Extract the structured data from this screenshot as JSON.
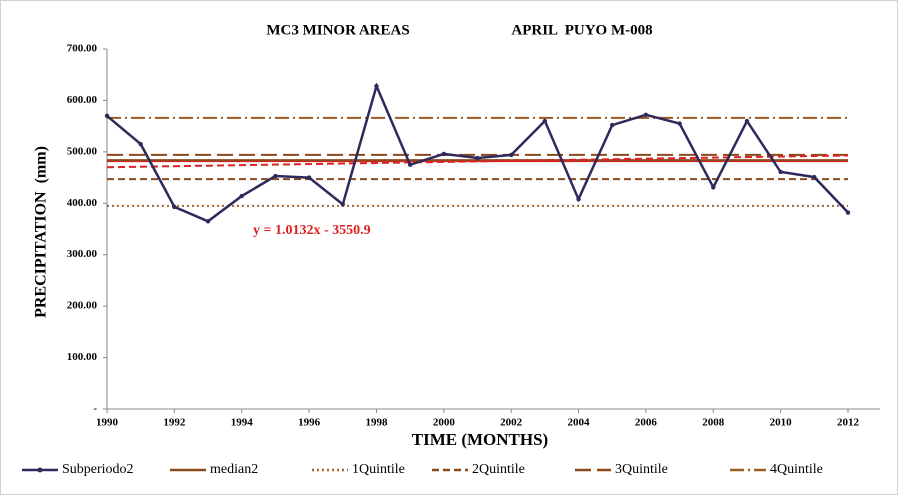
{
  "chart_data": {
    "type": "line",
    "title": "MC3 MINOR AREAS",
    "subtitle": "APRIL  PUYO M-008",
    "x_label": "TIME (MONTHS)",
    "y_label": "PRECIPITATION  (mm)",
    "x": [
      1990,
      1991,
      1992,
      1993,
      1994,
      1995,
      1996,
      1997,
      1998,
      1999,
      2000,
      2001,
      2002,
      2003,
      2004,
      2005,
      2006,
      2007,
      2008,
      2009,
      2010,
      2011,
      2012
    ],
    "xlim": [
      1990,
      2012
    ],
    "xticks": [
      1990,
      1992,
      1994,
      1996,
      1998,
      2000,
      2002,
      2004,
      2006,
      2008,
      2010,
      2012
    ],
    "ylim": [
      0,
      700
    ],
    "yticks": [
      {
        "value": 0,
        "label": "-"
      },
      {
        "value": 100,
        "label": "100.00"
      },
      {
        "value": 200,
        "label": "200.00"
      },
      {
        "value": 300,
        "label": "300.00"
      },
      {
        "value": 400,
        "label": "400.00"
      },
      {
        "value": 500,
        "label": "500.00"
      },
      {
        "value": 600,
        "label": "600.00"
      },
      {
        "value": 700,
        "label": "700.00"
      }
    ],
    "series": [
      {
        "name": "Subperiodo2",
        "color": "#2f2a5c",
        "style": "solid",
        "markers": true,
        "values": [
          570,
          515,
          393,
          365,
          414,
          453,
          450,
          398,
          628,
          475,
          496,
          488,
          494,
          560,
          408,
          552,
          572,
          555,
          431,
          560,
          461,
          451,
          382
        ]
      },
      {
        "name": "median2",
        "color": "#8b4a1c",
        "style": "solid",
        "values": [
          484,
          484,
          484,
          484,
          484,
          484,
          484,
          484,
          484,
          484,
          484,
          484,
          484,
          484,
          484,
          484,
          484,
          484,
          484,
          484,
          484,
          484,
          484
        ]
      },
      {
        "name": "1Quintile",
        "color": "#a8642a",
        "style": "dotted",
        "values": [
          395,
          395,
          395,
          395,
          395,
          395,
          395,
          395,
          395,
          395,
          395,
          395,
          395,
          395,
          395,
          395,
          395,
          395,
          395,
          395,
          395,
          395,
          395
        ]
      },
      {
        "name": "2Quintile",
        "color": "#8b4a1c",
        "style": "dashed",
        "values": [
          447,
          447,
          447,
          447,
          447,
          447,
          447,
          447,
          447,
          447,
          447,
          447,
          447,
          447,
          447,
          447,
          447,
          447,
          447,
          447,
          447,
          447,
          447
        ]
      },
      {
        "name": "3Quintile",
        "color": "#8b4a1c",
        "style": "longdash",
        "values": [
          494,
          494,
          494,
          494,
          494,
          494,
          494,
          494,
          494,
          494,
          494,
          494,
          494,
          494,
          494,
          494,
          494,
          494,
          494,
          494,
          494,
          494,
          494
        ]
      },
      {
        "name": "4Quintile",
        "color": "#9a5a20",
        "style": "dashdot",
        "values": [
          566,
          566,
          566,
          566,
          566,
          566,
          566,
          566,
          566,
          566,
          566,
          566,
          566,
          566,
          566,
          566,
          566,
          566,
          566,
          566,
          566,
          566,
          566
        ]
      }
    ],
    "reference_lines": [
      {
        "value": 482,
        "color": "#e02020",
        "style": "solid"
      }
    ],
    "trendline": {
      "label": "y = 1.0132x - 3550.9",
      "color": "#e02020",
      "style": "dashed",
      "x": [
        1990,
        2012
      ],
      "values": [
        470,
        493
      ]
    },
    "legend": "bottom"
  }
}
